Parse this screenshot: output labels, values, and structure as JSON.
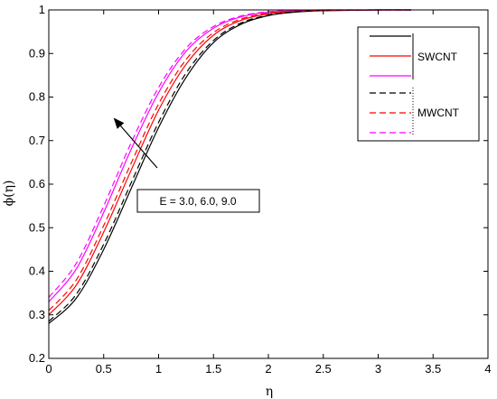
{
  "chart_data": {
    "type": "line",
    "xlabel": "η",
    "ylabel": "ϕ(η)",
    "xlim": [
      0,
      4
    ],
    "ylim": [
      0.2,
      1
    ],
    "x_ticks": [
      "0",
      "0.5",
      "1",
      "1.5",
      "2",
      "2.5",
      "3",
      "3.5",
      "4"
    ],
    "y_ticks": [
      "0.2",
      "0.3",
      "0.4",
      "0.5",
      "0.6",
      "0.7",
      "0.8",
      "0.9",
      "1"
    ],
    "grid": false,
    "legend_position": "top-right",
    "legend": {
      "groups": [
        {
          "label": "SWCNT",
          "style": "solid",
          "colors": [
            "#000000",
            "#ff0000",
            "#ff00ff"
          ]
        },
        {
          "label": "MWCNT",
          "style": "dashed",
          "colors": [
            "#000000",
            "#ff0000",
            "#ff00ff"
          ]
        }
      ]
    },
    "annotation": {
      "text": "E = 3.0, 6.0, 9.0"
    },
    "series": [
      {
        "group": "SWCNT",
        "color": "#000000",
        "dash": "solid",
        "x": [
          0,
          0.25,
          0.5,
          0.75,
          1.0,
          1.25,
          1.5,
          1.75,
          2.0,
          2.25,
          2.5,
          3.0,
          3.3
        ],
        "y": [
          0.28,
          0.338,
          0.45,
          0.59,
          0.73,
          0.845,
          0.925,
          0.967,
          0.987,
          0.995,
          0.998,
          1.0,
          1.0
        ]
      },
      {
        "group": "SWCNT",
        "color": "#ff0000",
        "dash": "solid",
        "x": [
          0,
          0.25,
          0.5,
          0.75,
          1.0,
          1.25,
          1.5,
          1.75,
          2.0,
          2.25,
          2.5,
          3.0,
          3.3
        ],
        "y": [
          0.3,
          0.368,
          0.49,
          0.632,
          0.77,
          0.875,
          0.942,
          0.976,
          0.991,
          0.997,
          0.999,
          1.0,
          1.0
        ]
      },
      {
        "group": "SWCNT",
        "color": "#ff00ff",
        "dash": "solid",
        "x": [
          0,
          0.25,
          0.5,
          0.75,
          1.0,
          1.25,
          1.5,
          1.75,
          2.0,
          2.25,
          2.5,
          3.0,
          3.3
        ],
        "y": [
          0.33,
          0.405,
          0.535,
          0.68,
          0.81,
          0.905,
          0.958,
          0.984,
          0.995,
          0.998,
          1.0,
          1.0,
          1.0
        ]
      },
      {
        "group": "MWCNT",
        "color": "#000000",
        "dash": "dashed",
        "x": [
          0,
          0.25,
          0.5,
          0.75,
          1.0,
          1.25,
          1.5,
          1.75,
          2.0,
          2.25,
          2.5,
          3.0,
          3.3
        ],
        "y": [
          0.285,
          0.347,
          0.462,
          0.603,
          0.742,
          0.855,
          0.93,
          0.97,
          0.988,
          0.996,
          0.999,
          1.0,
          1.0
        ]
      },
      {
        "group": "MWCNT",
        "color": "#ff0000",
        "dash": "dashed",
        "x": [
          0,
          0.25,
          0.5,
          0.75,
          1.0,
          1.25,
          1.5,
          1.75,
          2.0,
          2.25,
          2.5,
          3.0,
          3.3
        ],
        "y": [
          0.31,
          0.38,
          0.505,
          0.648,
          0.784,
          0.886,
          0.948,
          0.979,
          0.993,
          0.998,
          0.999,
          1.0,
          1.0
        ]
      },
      {
        "group": "MWCNT",
        "color": "#ff00ff",
        "dash": "dashed",
        "x": [
          0,
          0.25,
          0.5,
          0.75,
          1.0,
          1.25,
          1.5,
          1.75,
          2.0,
          2.25,
          2.5,
          3.0,
          3.3
        ],
        "y": [
          0.34,
          0.418,
          0.55,
          0.695,
          0.822,
          0.912,
          0.962,
          0.986,
          0.996,
          0.999,
          1.0,
          1.0,
          1.0
        ]
      }
    ]
  }
}
